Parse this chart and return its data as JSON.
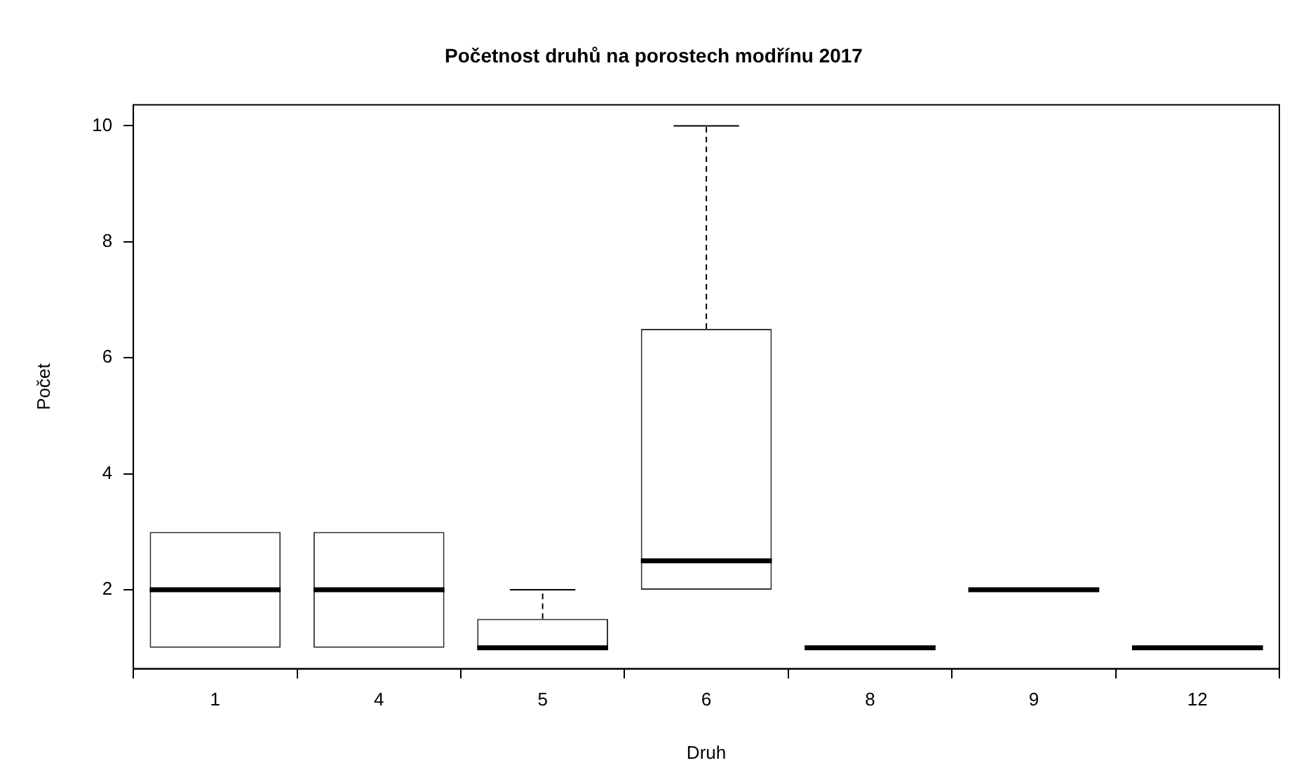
{
  "chart_data": {
    "type": "box",
    "title": "Početnost druhů na porostech modřínu 2017",
    "xlabel": "Druh",
    "ylabel": "Počet",
    "categories": [
      "1",
      "4",
      "5",
      "6",
      "8",
      "9",
      "12"
    ],
    "boxes": [
      {
        "low": 1,
        "q1": 1,
        "median": 2,
        "q3": 3,
        "high": 3
      },
      {
        "low": 1,
        "q1": 1,
        "median": 2,
        "q3": 3,
        "high": 3
      },
      {
        "low": 1,
        "q1": 1,
        "median": 1,
        "q3": 1.5,
        "high": 2
      },
      {
        "low": 2,
        "q1": 2,
        "median": 2.5,
        "q3": 6.5,
        "high": 10
      },
      {
        "low": 1,
        "q1": 1,
        "median": 1,
        "q3": 1,
        "high": 1
      },
      {
        "low": 2,
        "q1": 2,
        "median": 2,
        "q3": 2,
        "high": 2
      },
      {
        "low": 1,
        "q1": 1,
        "median": 1,
        "q3": 1,
        "high": 1
      }
    ],
    "ylim": [
      0.64,
      10.36
    ],
    "yticks": [
      2,
      4,
      6,
      8,
      10
    ]
  }
}
